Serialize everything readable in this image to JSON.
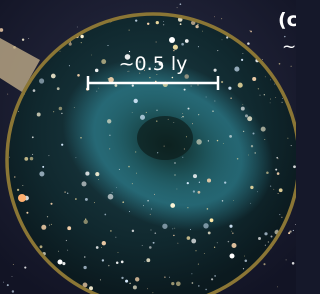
{
  "scale_bar": {
    "label": "~0.5 ly"
  },
  "panel": {
    "label": "(c",
    "caption_start": "~"
  }
}
